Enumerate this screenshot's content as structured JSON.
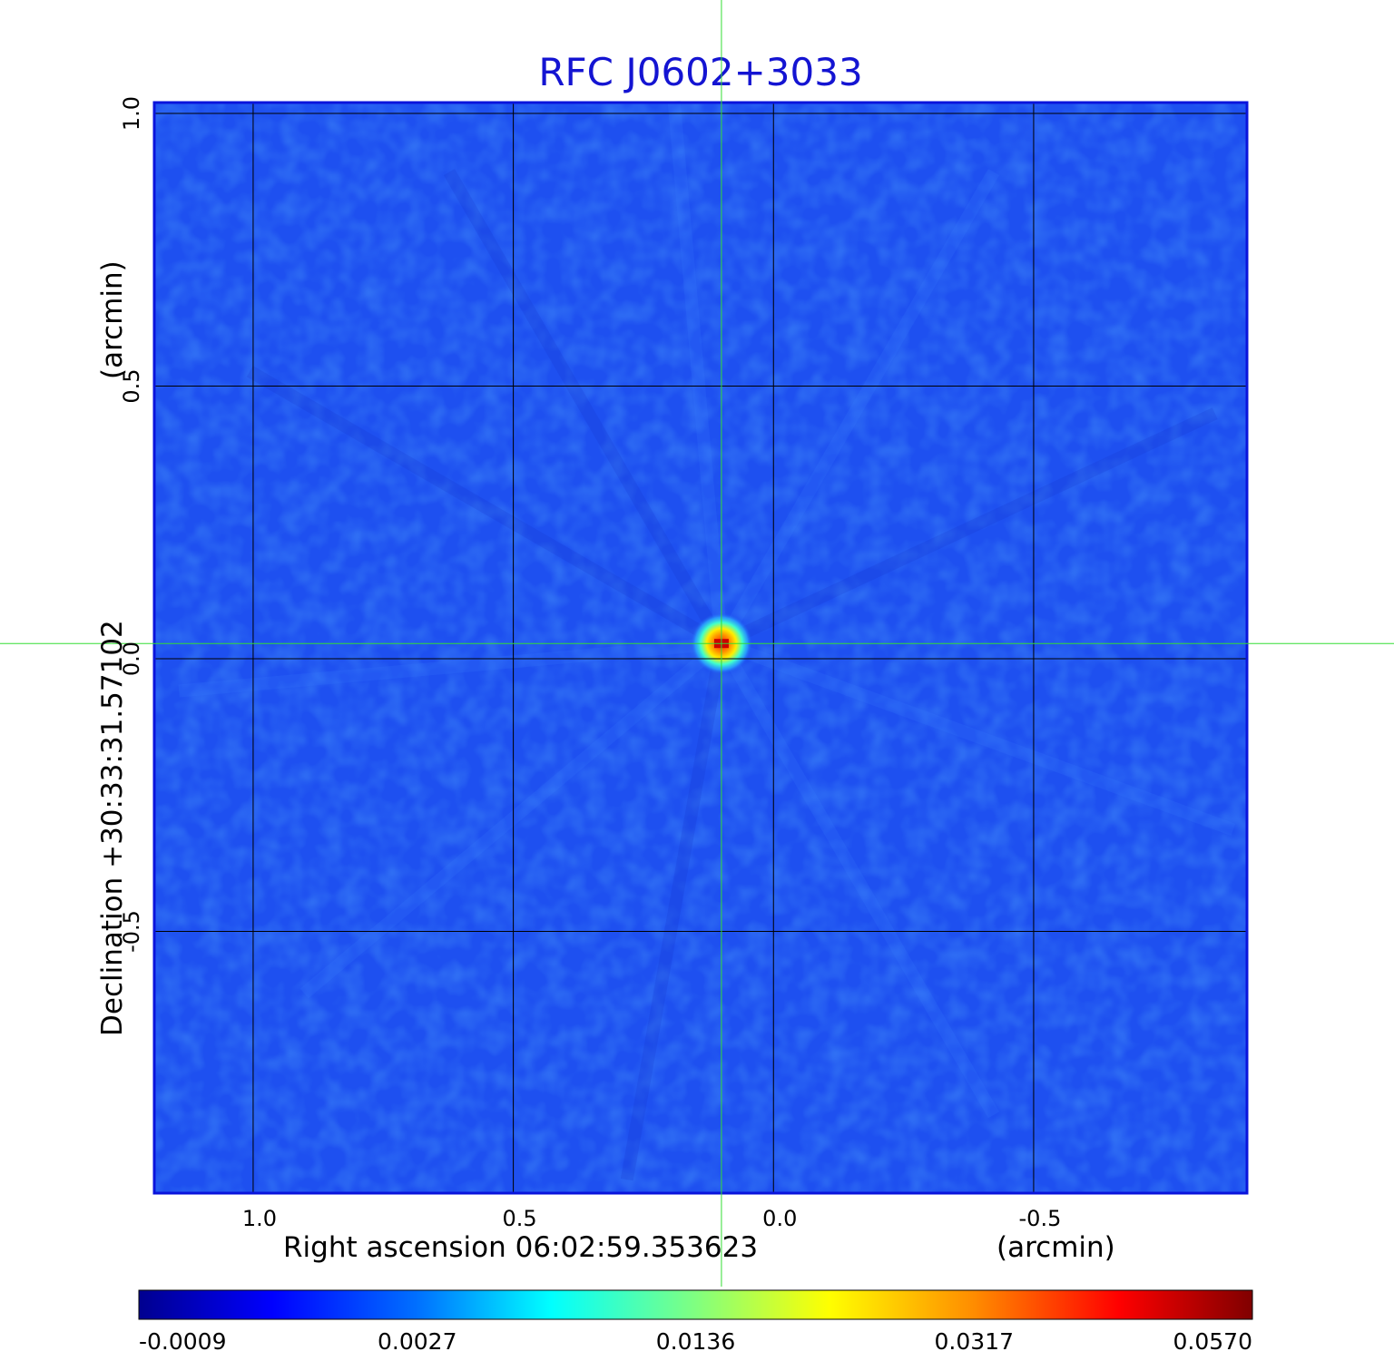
{
  "chart_data": {
    "type": "heatmap",
    "title": "RFC J0602+3033",
    "xlabel": "Right ascension  06:02:59.353623",
    "xunit": "(arcmin)",
    "ylabel": "Declination  +30:33:31.57102",
    "yunit": "(arcmin)",
    "xlim": [
      1.19,
      -0.91
    ],
    "ylim": [
      -0.98,
      1.02
    ],
    "xticks": [
      {
        "value": 1.0,
        "label": "1.0"
      },
      {
        "value": 0.5,
        "label": "0.5"
      },
      {
        "value": 0.0,
        "label": "0.0"
      },
      {
        "value": -0.5,
        "label": "-0.5"
      }
    ],
    "yticks": [
      {
        "value": 1.0,
        "label": "1.0"
      },
      {
        "value": 0.5,
        "label": "0.5"
      },
      {
        "value": 0.0,
        "label": "0.0"
      },
      {
        "value": -0.5,
        "label": "-0.5"
      }
    ],
    "grid": true,
    "crosshair": {
      "x": 0.1,
      "y": 0.028,
      "color": "#33dd33"
    },
    "source_peak": {
      "x": 0.1,
      "y": 0.028,
      "value": 0.057
    },
    "colormap": "jet",
    "colorbar": {
      "placement": "bottom",
      "labels": [
        "-0.0009",
        "0.0027",
        "0.0136",
        "0.0317",
        "0.0570"
      ]
    },
    "colors": {
      "background_field": "#1e50f0",
      "frame": "#0a14dc",
      "grid": "#000000",
      "title": "#1414d2"
    }
  }
}
